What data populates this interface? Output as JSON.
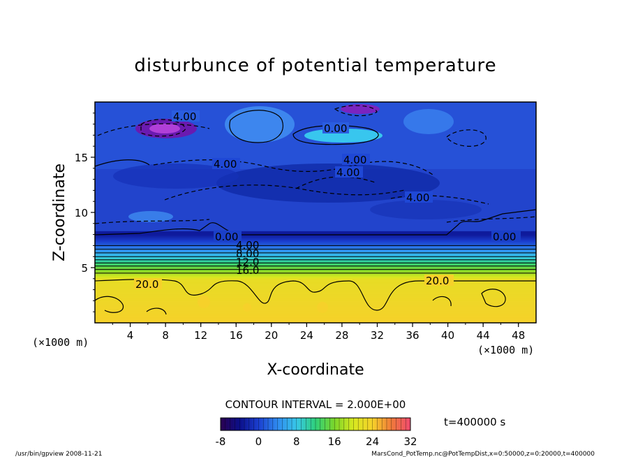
{
  "chart_data": {
    "type": "heatmap",
    "title": "disturbunce of potential temperature",
    "xlabel": "X-coordinate",
    "ylabel": "Z-coordinate",
    "x_unit": "(×1000 m)",
    "y_unit": "(×1000 m)",
    "xlim": [
      0,
      50
    ],
    "ylim": [
      0,
      20
    ],
    "x_ticks": [
      "4",
      "8",
      "12",
      "16",
      "20",
      "24",
      "28",
      "32",
      "36",
      "40",
      "44",
      "48"
    ],
    "y_ticks": [
      "5",
      "10",
      "15"
    ],
    "contour_interval_text": "CONTOUR INTERVAL = 2.000E+00",
    "contour_labels": [
      "4.00",
      "0.00",
      "0.00",
      "4.00",
      "4.00",
      "4.00",
      "4.00",
      "0.00",
      "0.00",
      "4.00",
      "8.00",
      "12.0",
      "16.0",
      "20.0",
      "20.0"
    ],
    "colorbar": {
      "min": -8,
      "max": 32,
      "ticks": [
        "-8",
        "0",
        "8",
        "16",
        "24",
        "32"
      ]
    },
    "time_label": "t=400000 s",
    "profile_z_km": [
      0,
      4,
      5,
      6,
      7,
      8,
      20
    ],
    "profile_value": [
      22,
      21,
      15,
      8,
      2,
      -3,
      -3
    ],
    "grid": false
  },
  "footer": {
    "left": "/usr/bin/gpview  2008-11-21",
    "right": "MarsCond_PotTemp.nc@PotTempDist,x=0:50000,z=0:20000,t=400000"
  }
}
